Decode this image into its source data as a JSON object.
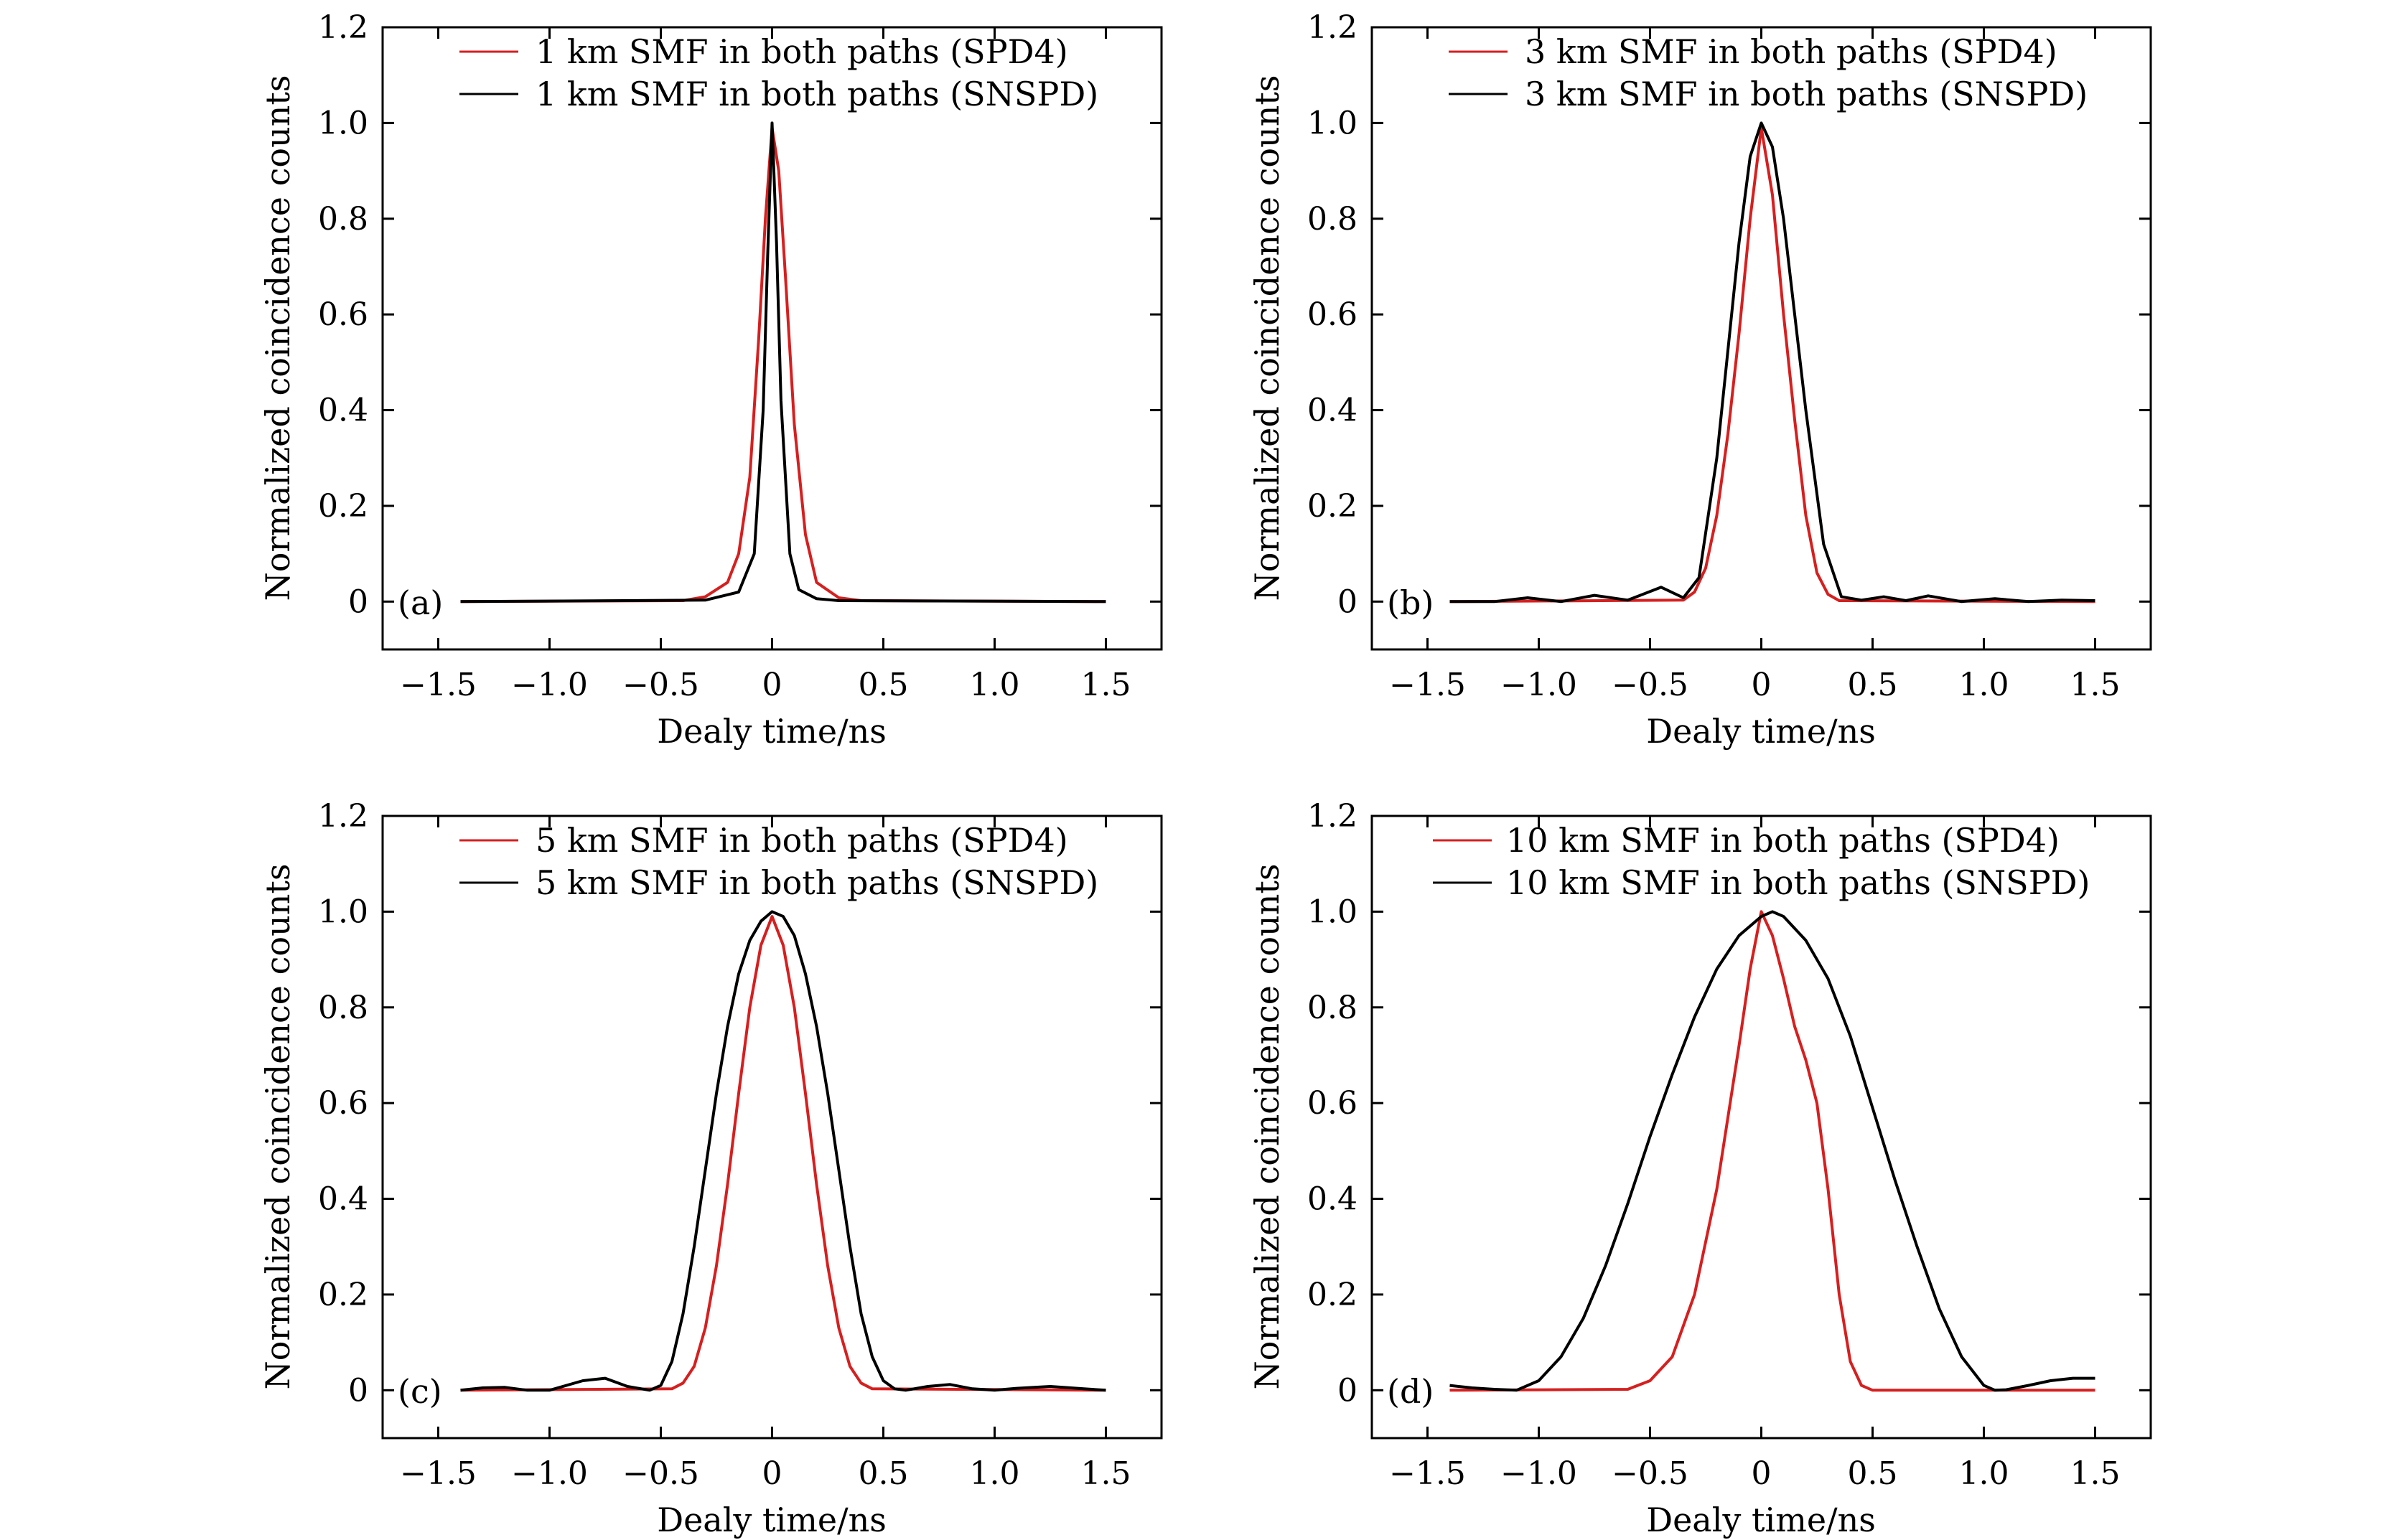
{
  "chart_data": [
    {
      "panel": "(a)",
      "type": "line",
      "xlabel": "Dealy time/ns",
      "ylabel": "Normalized coincidence counts",
      "xlim": [
        -1.75,
        1.75
      ],
      "ylim": [
        -0.1,
        1.2
      ],
      "xticks": [
        -1.5,
        -1.0,
        -0.5,
        0,
        0.5,
        1.0,
        1.5
      ],
      "xtick_labels": [
        "−1.5",
        "−1.0",
        "−0.5",
        "0",
        "0.5",
        "1.0",
        "1.5"
      ],
      "yticks": [
        0,
        0.2,
        0.4,
        0.6,
        0.8,
        1.0,
        1.2
      ],
      "ytick_labels": [
        "0",
        "0.2",
        "0.4",
        "0.6",
        "0.8",
        "1.0",
        "1.2"
      ],
      "legend_position": "top-right",
      "series": [
        {
          "name": "1 km SMF in both paths (SPD4)",
          "color": "#d61f1f",
          "x": [
            -1.4,
            -0.4,
            -0.3,
            -0.2,
            -0.15,
            -0.1,
            -0.06,
            -0.03,
            0,
            0.03,
            0.06,
            0.1,
            0.15,
            0.2,
            0.3,
            0.4,
            1.5
          ],
          "y": [
            0,
            0.002,
            0.01,
            0.04,
            0.1,
            0.26,
            0.55,
            0.8,
            0.99,
            0.9,
            0.68,
            0.37,
            0.14,
            0.04,
            0.008,
            0.002,
            0
          ]
        },
        {
          "name": "1 km SMF in both paths (SNSPD)",
          "color": "#000000",
          "x": [
            -1.4,
            -0.3,
            -0.15,
            -0.08,
            -0.04,
            -0.02,
            0,
            0.02,
            0.04,
            0.08,
            0.12,
            0.2,
            0.3,
            1.5
          ],
          "y": [
            0,
            0.003,
            0.02,
            0.1,
            0.4,
            0.72,
            1.0,
            0.75,
            0.42,
            0.1,
            0.025,
            0.006,
            0.002,
            0
          ]
        }
      ]
    },
    {
      "panel": "(b)",
      "type": "line",
      "xlabel": "Dealy time/ns",
      "ylabel": "Normalized coincidence counts",
      "xlim": [
        -1.75,
        1.75
      ],
      "ylim": [
        -0.1,
        1.2
      ],
      "xticks": [
        -1.5,
        -1.0,
        -0.5,
        0,
        0.5,
        1.0,
        1.5
      ],
      "xtick_labels": [
        "−1.5",
        "−1.0",
        "−0.5",
        "0",
        "0.5",
        "1.0",
        "1.5"
      ],
      "yticks": [
        0,
        0.2,
        0.4,
        0.6,
        0.8,
        1.0,
        1.2
      ],
      "ytick_labels": [
        "0",
        "0.2",
        "0.4",
        "0.6",
        "0.8",
        "1.0",
        "1.2"
      ],
      "legend_position": "top-right",
      "series": [
        {
          "name": "3 km SMF in both paths (SPD4)",
          "color": "#d61f1f",
          "x": [
            -1.4,
            -0.35,
            -0.3,
            -0.25,
            -0.2,
            -0.15,
            -0.1,
            -0.05,
            0,
            0.05,
            0.1,
            0.15,
            0.2,
            0.25,
            0.3,
            0.35,
            1.5
          ],
          "y": [
            0,
            0.003,
            0.02,
            0.07,
            0.18,
            0.35,
            0.56,
            0.8,
            0.99,
            0.85,
            0.6,
            0.38,
            0.18,
            0.06,
            0.015,
            0.002,
            0
          ]
        },
        {
          "name": "3 km SMF in both paths (SNSPD)",
          "color": "#000000",
          "x": [
            -1.4,
            -1.2,
            -1.05,
            -0.9,
            -0.75,
            -0.6,
            -0.45,
            -0.35,
            -0.28,
            -0.2,
            -0.1,
            -0.05,
            0,
            0.05,
            0.1,
            0.2,
            0.28,
            0.36,
            0.45,
            0.55,
            0.65,
            0.75,
            0.9,
            1.05,
            1.2,
            1.35,
            1.5
          ],
          "y": [
            0,
            0.0,
            0.008,
            0.0,
            0.013,
            0.003,
            0.03,
            0.008,
            0.05,
            0.3,
            0.75,
            0.93,
            1.0,
            0.95,
            0.8,
            0.4,
            0.12,
            0.01,
            0.003,
            0.01,
            0.002,
            0.012,
            0.0,
            0.006,
            0.0,
            0.003,
            0.002
          ]
        }
      ]
    },
    {
      "panel": "(c)",
      "type": "line",
      "xlabel": "Dealy time/ns",
      "ylabel": "Normalized coincidence counts",
      "xlim": [
        -1.75,
        1.75
      ],
      "ylim": [
        -0.1,
        1.2
      ],
      "xticks": [
        -1.5,
        -1.0,
        -0.5,
        0,
        0.5,
        1.0,
        1.5
      ],
      "xtick_labels": [
        "−1.5",
        "−1.0",
        "−0.5",
        "0",
        "0.5",
        "1.0",
        "1.5"
      ],
      "yticks": [
        0,
        0.2,
        0.4,
        0.6,
        0.8,
        1.0,
        1.2
      ],
      "ytick_labels": [
        "0",
        "0.2",
        "0.4",
        "0.6",
        "0.8",
        "1.0",
        "1.2"
      ],
      "legend_position": "top-right",
      "series": [
        {
          "name": "5 km SMF in both paths (SPD4)",
          "color": "#d61f1f",
          "x": [
            -1.4,
            -0.45,
            -0.4,
            -0.35,
            -0.3,
            -0.25,
            -0.2,
            -0.15,
            -0.1,
            -0.05,
            0,
            0.05,
            0.1,
            0.15,
            0.2,
            0.25,
            0.3,
            0.35,
            0.4,
            0.45,
            1.5
          ],
          "y": [
            0,
            0.003,
            0.015,
            0.05,
            0.13,
            0.26,
            0.43,
            0.62,
            0.8,
            0.93,
            0.99,
            0.93,
            0.8,
            0.62,
            0.43,
            0.26,
            0.13,
            0.05,
            0.015,
            0.003,
            0
          ]
        },
        {
          "name": "5 km SMF in both paths (SNSPD)",
          "color": "#000000",
          "x": [
            -1.4,
            -1.3,
            -1.2,
            -1.1,
            -1.0,
            -0.85,
            -0.75,
            -0.65,
            -0.55,
            -0.5,
            -0.45,
            -0.4,
            -0.35,
            -0.3,
            -0.25,
            -0.2,
            -0.15,
            -0.1,
            -0.05,
            0,
            0.05,
            0.1,
            0.15,
            0.2,
            0.25,
            0.3,
            0.35,
            0.4,
            0.45,
            0.5,
            0.55,
            0.6,
            0.7,
            0.8,
            0.9,
            1.0,
            1.1,
            1.25,
            1.4,
            1.5
          ],
          "y": [
            0.0,
            0.005,
            0.006,
            0.0,
            0.0,
            0.02,
            0.025,
            0.008,
            0.0,
            0.01,
            0.06,
            0.16,
            0.3,
            0.46,
            0.62,
            0.76,
            0.87,
            0.94,
            0.98,
            1.0,
            0.99,
            0.95,
            0.87,
            0.76,
            0.62,
            0.46,
            0.3,
            0.16,
            0.07,
            0.02,
            0.003,
            0.0,
            0.008,
            0.012,
            0.003,
            0.0,
            0.004,
            0.008,
            0.003,
            0.0
          ]
        }
      ]
    },
    {
      "panel": "(d)",
      "type": "line",
      "xlabel": "Dealy time/ns",
      "ylabel": "Normalized coincidence counts",
      "xlim": [
        -1.75,
        1.75
      ],
      "ylim": [
        -0.1,
        1.2
      ],
      "xticks": [
        -1.5,
        -1.0,
        -0.5,
        0,
        0.5,
        1.0,
        1.5
      ],
      "xtick_labels": [
        "−1.5",
        "−1.0",
        "−0.5",
        "0",
        "0.5",
        "1.0",
        "1.5"
      ],
      "yticks": [
        0,
        0.2,
        0.4,
        0.6,
        0.8,
        1.0,
        1.2
      ],
      "ytick_labels": [
        "0",
        "0.2",
        "0.4",
        "0.6",
        "0.8",
        "1.0",
        "1.2"
      ],
      "legend_position": "top-right",
      "series": [
        {
          "name": "10 km SMF in both paths (SPD4)",
          "color": "#d61f1f",
          "x": [
            -1.4,
            -0.6,
            -0.5,
            -0.4,
            -0.3,
            -0.2,
            -0.1,
            -0.05,
            0,
            0.05,
            0.1,
            0.15,
            0.2,
            0.25,
            0.3,
            0.35,
            0.4,
            0.45,
            0.5,
            1.5
          ],
          "y": [
            0,
            0.002,
            0.02,
            0.07,
            0.2,
            0.42,
            0.72,
            0.88,
            1.0,
            0.95,
            0.86,
            0.76,
            0.69,
            0.6,
            0.42,
            0.2,
            0.06,
            0.01,
            0.0,
            0
          ]
        },
        {
          "name": "10 km SMF in both paths (SNSPD)",
          "color": "#000000",
          "x": [
            -1.4,
            -1.3,
            -1.2,
            -1.1,
            -1.0,
            -0.9,
            -0.8,
            -0.7,
            -0.6,
            -0.5,
            -0.4,
            -0.3,
            -0.2,
            -0.1,
            0,
            0.05,
            0.1,
            0.2,
            0.3,
            0.4,
            0.5,
            0.6,
            0.7,
            0.8,
            0.9,
            1.0,
            1.05,
            1.1,
            1.2,
            1.3,
            1.4,
            1.5
          ],
          "y": [
            0.01,
            0.005,
            0.002,
            0.0,
            0.02,
            0.07,
            0.15,
            0.26,
            0.39,
            0.53,
            0.66,
            0.78,
            0.88,
            0.95,
            0.99,
            1.0,
            0.99,
            0.94,
            0.86,
            0.74,
            0.59,
            0.44,
            0.3,
            0.17,
            0.07,
            0.01,
            0.0,
            0.001,
            0.01,
            0.02,
            0.025,
            0.025
          ]
        }
      ]
    }
  ]
}
